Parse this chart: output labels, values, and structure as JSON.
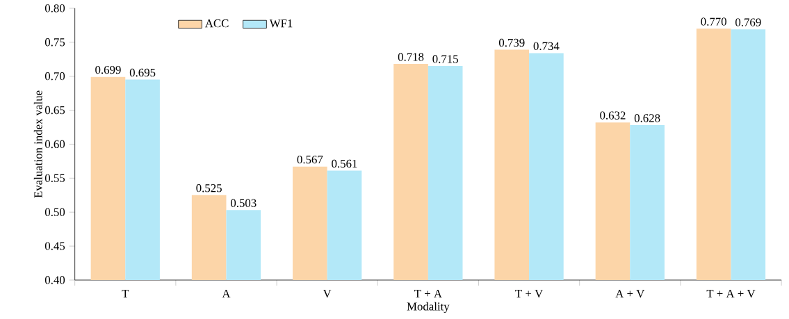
{
  "chart_data": {
    "type": "bar",
    "xlabel": "Modality",
    "ylabel": "Evaluation index value",
    "categories": [
      "T",
      "A",
      "V",
      "T + A",
      "T + V",
      "A + V",
      "T + A + V"
    ],
    "series": [
      {
        "name": "ACC",
        "color": "#fcd5a8",
        "values": [
          0.699,
          0.525,
          0.567,
          0.718,
          0.739,
          0.632,
          0.77
        ],
        "value_labels": [
          "0.699",
          "0.525",
          "0.567",
          "0.718",
          "0.739",
          "0.632",
          "0.770"
        ]
      },
      {
        "name": "WF1",
        "color": "#b3e8f8",
        "values": [
          0.695,
          0.503,
          0.561,
          0.715,
          0.734,
          0.628,
          0.769
        ],
        "value_labels": [
          "0.695",
          "0.503",
          "0.561",
          "0.715",
          "0.734",
          "0.628",
          "0.769"
        ]
      }
    ],
    "ylim": [
      0.4,
      0.8
    ],
    "yticks": [
      {
        "value": 0.4,
        "label": "0.40"
      },
      {
        "value": 0.45,
        "label": "0.45"
      },
      {
        "value": 0.5,
        "label": "0.50"
      },
      {
        "value": 0.55,
        "label": "0.55"
      },
      {
        "value": 0.6,
        "label": "0.60"
      },
      {
        "value": 0.65,
        "label": "0.65"
      },
      {
        "value": 0.7,
        "label": "0.70"
      },
      {
        "value": 0.75,
        "label": "0.75"
      },
      {
        "value": 0.8,
        "label": "0.80"
      }
    ],
    "legend": "top left"
  }
}
